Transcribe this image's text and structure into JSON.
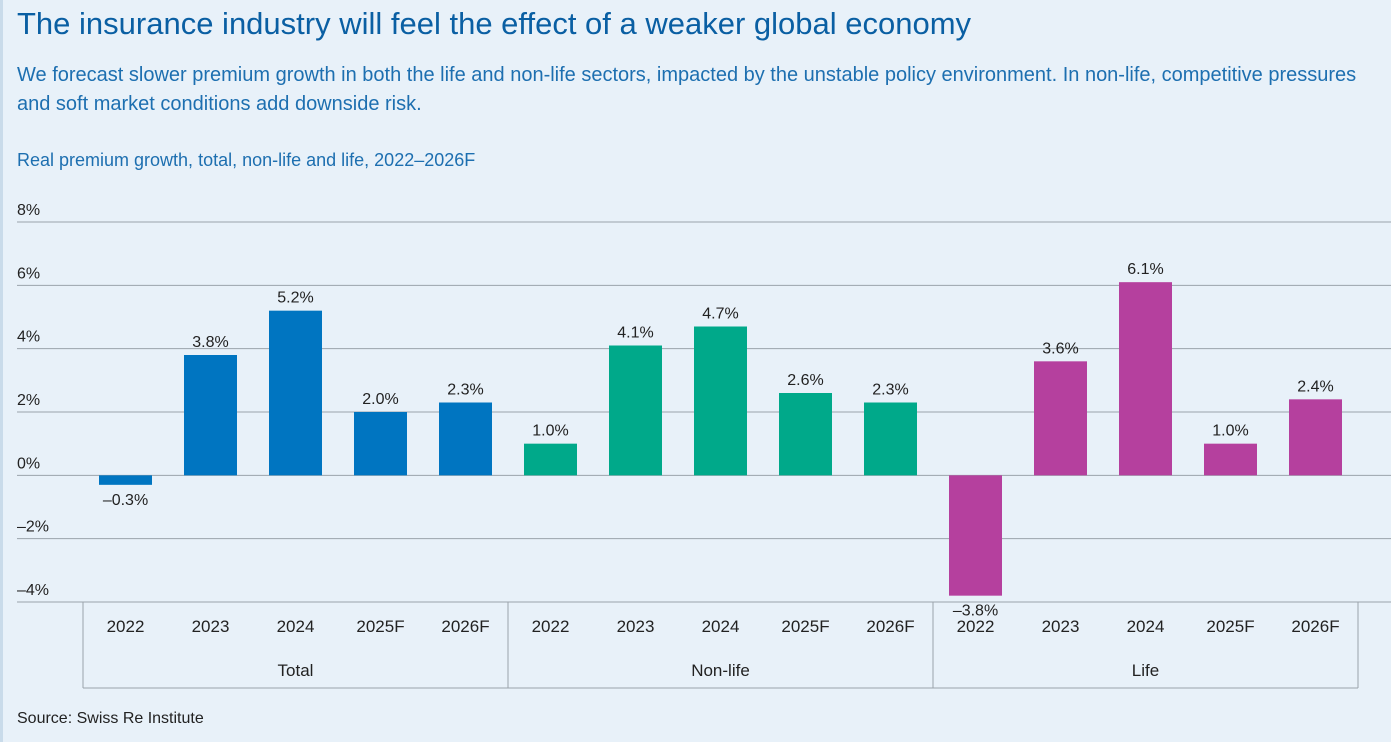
{
  "header": {
    "title": "The insurance industry will feel the effect of a weaker global economy",
    "subtitle": "We forecast slower premium growth in both the life and non-life sectors, impacted by the unstable policy environment. In non-life, competitive pressures and soft market conditions add downside risk."
  },
  "footer": {
    "source": "Source: Swiss Re Institute"
  },
  "chart_data": {
    "type": "bar",
    "title": "Real premium growth, total, non-life and life, 2022–2026F",
    "ylim": [
      -4,
      8
    ],
    "y_ticks": [
      "8%",
      "6%",
      "4%",
      "2%",
      "0%",
      "–2%",
      "–4%"
    ],
    "y_tick_values": [
      8,
      6,
      4,
      2,
      0,
      -2,
      -4
    ],
    "grid": true,
    "groups": [
      {
        "name": "Total",
        "color": "#0075c1",
        "categories": [
          "2022",
          "2023",
          "2024",
          "2025F",
          "2026F"
        ],
        "values": [
          -0.3,
          3.8,
          5.2,
          2.0,
          2.3
        ],
        "labels": [
          "–0.3%",
          "3.8%",
          "5.2%",
          "2.0%",
          "2.3%"
        ]
      },
      {
        "name": "Non-life",
        "color": "#00a98a",
        "categories": [
          "2022",
          "2023",
          "2024",
          "2025F",
          "2026F"
        ],
        "values": [
          1.0,
          4.1,
          4.7,
          2.6,
          2.3
        ],
        "labels": [
          "1.0%",
          "4.1%",
          "4.7%",
          "2.6%",
          "2.3%"
        ]
      },
      {
        "name": "Life",
        "color": "#b5409e",
        "categories": [
          "2022",
          "2023",
          "2024",
          "2025F",
          "2026F"
        ],
        "values": [
          -3.8,
          3.6,
          6.1,
          1.0,
          2.4
        ],
        "labels": [
          "–3.8%",
          "3.6%",
          "6.1%",
          "1.0%",
          "2.4%"
        ]
      }
    ]
  }
}
